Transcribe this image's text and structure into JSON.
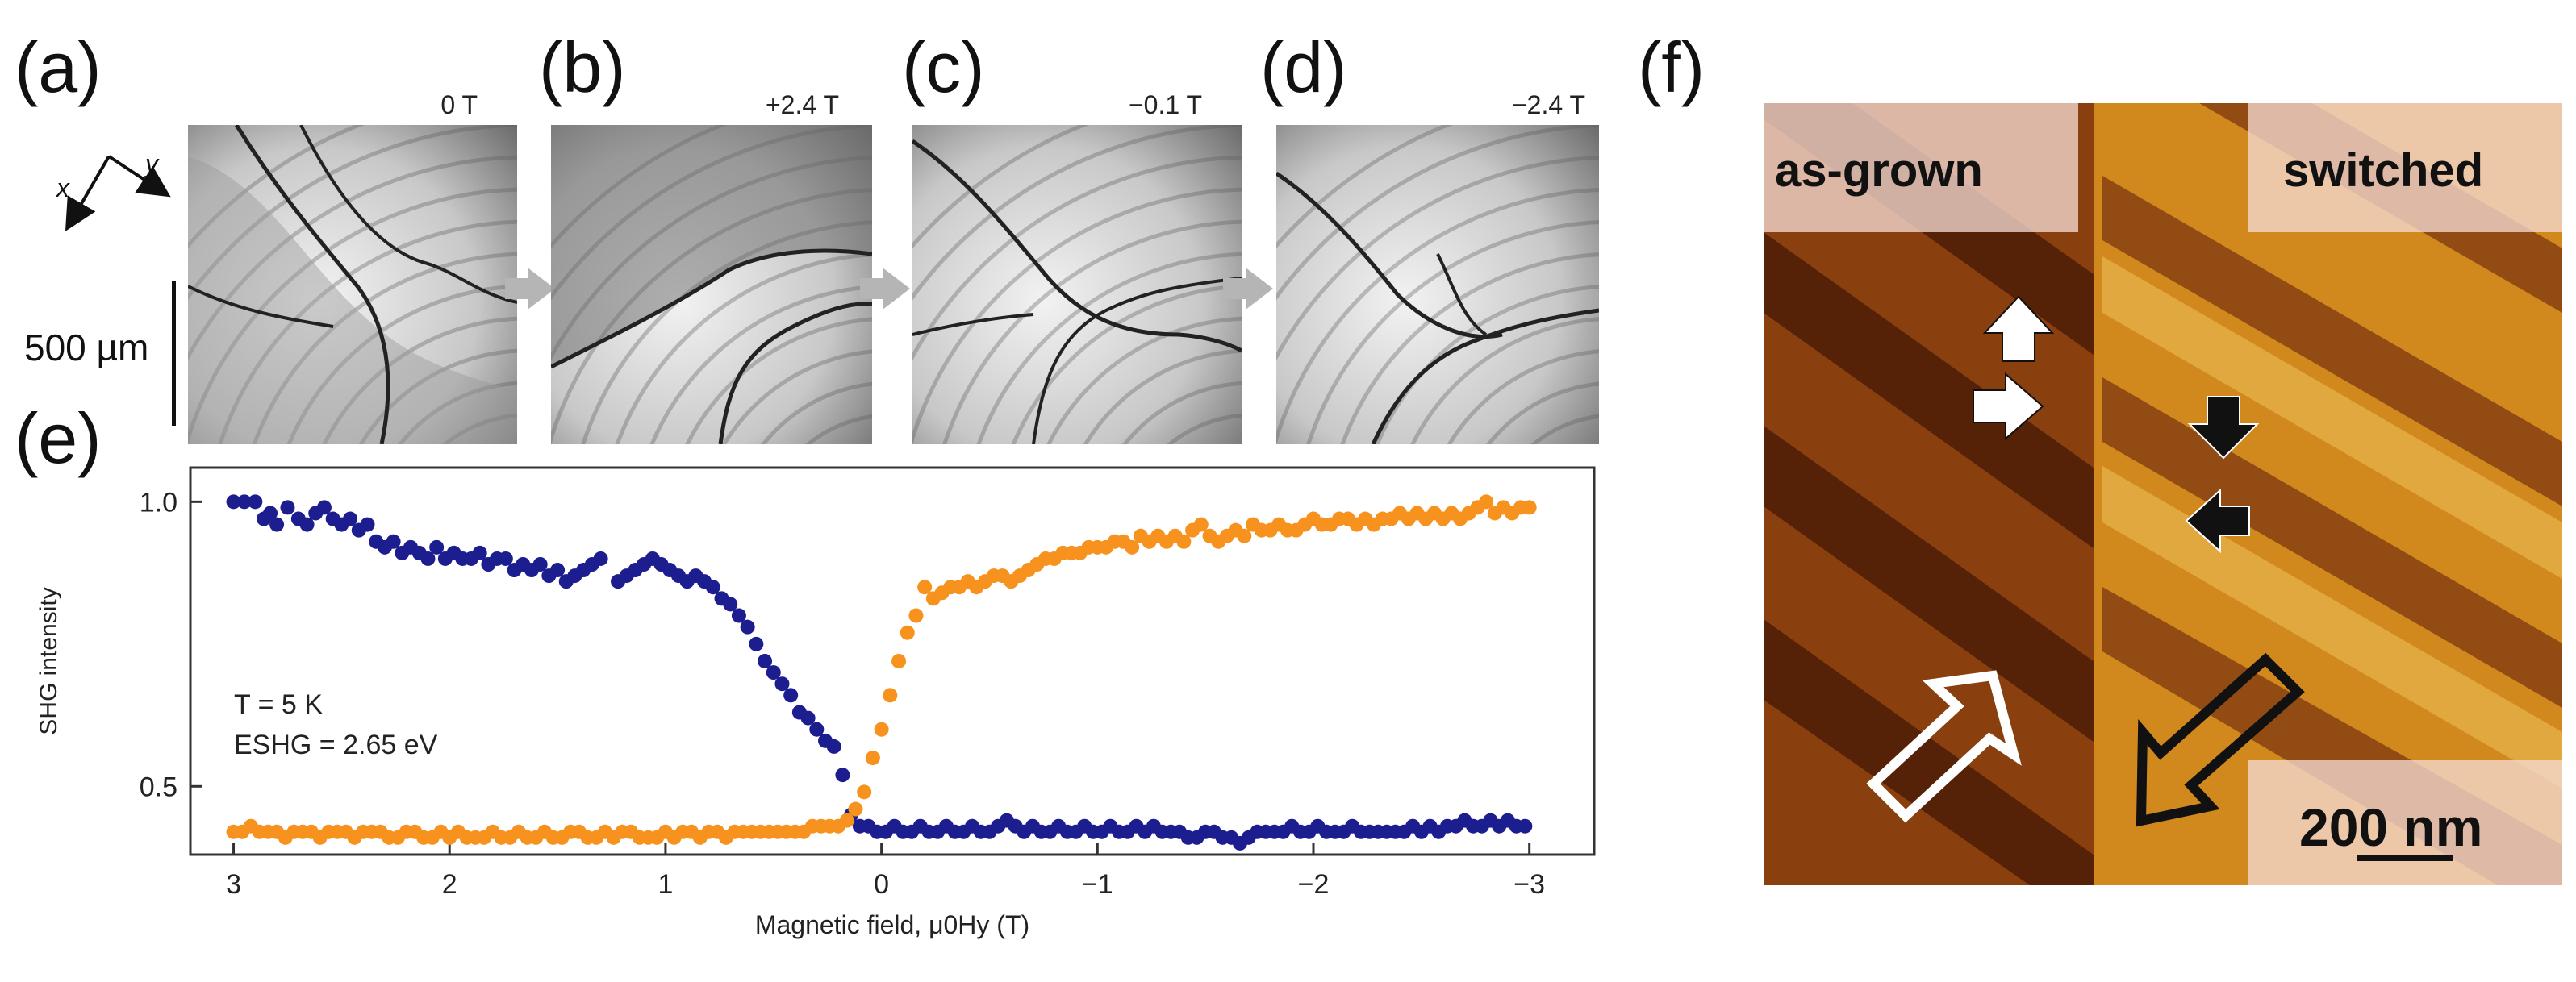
{
  "panels": {
    "a": {
      "label": "(a)",
      "field": "0 T"
    },
    "b": {
      "label": "(b)",
      "field": "+2.4 T"
    },
    "c": {
      "label": "(c)",
      "field": "−0.1 T"
    },
    "d": {
      "label": "(d)",
      "field": "−2.4 T"
    },
    "e": {
      "label": "(e)"
    },
    "f": {
      "label": "(f)"
    }
  },
  "axes_inset": {
    "x": "x",
    "y": "y"
  },
  "scale_500": "500 µm",
  "afm": {
    "left_label": "as-grown",
    "right_label": "switched",
    "scale": "200 nm"
  },
  "colors": {
    "blue": "#1c1d8f",
    "orange": "#f7921e"
  },
  "chart_data": {
    "type": "scatter",
    "title": "",
    "xlabel": "Magnetic field, μ0Hy (T)",
    "ylabel": "SHG intensity",
    "xlim": [
      3.2,
      -3.3
    ],
    "ylim": [
      0.38,
      1.06
    ],
    "xticks": [
      3,
      2,
      1,
      0,
      -1,
      -2,
      -3
    ],
    "xtick_labels": [
      "3",
      "2",
      "1",
      "0",
      "−1",
      "−2",
      "−3"
    ],
    "yticks": [
      0.5,
      1.0
    ],
    "ytick_labels": [
      "0.5",
      "1.0"
    ],
    "annotations": [
      "T = 5 K",
      "ESHG = 2.65 eV"
    ],
    "series": [
      {
        "name": "blue",
        "points": [
          [
            3.0,
            1.0
          ],
          [
            2.95,
            1.0
          ],
          [
            2.9,
            1.0
          ],
          [
            2.86,
            0.97
          ],
          [
            2.83,
            0.98
          ],
          [
            2.8,
            0.96
          ],
          [
            2.75,
            0.99
          ],
          [
            2.7,
            0.97
          ],
          [
            2.66,
            0.96
          ],
          [
            2.62,
            0.98
          ],
          [
            2.58,
            0.99
          ],
          [
            2.54,
            0.97
          ],
          [
            2.5,
            0.96
          ],
          [
            2.46,
            0.97
          ],
          [
            2.42,
            0.95
          ],
          [
            2.38,
            0.96
          ],
          [
            2.34,
            0.93
          ],
          [
            2.3,
            0.92
          ],
          [
            2.26,
            0.93
          ],
          [
            2.22,
            0.91
          ],
          [
            2.18,
            0.92
          ],
          [
            2.14,
            0.91
          ],
          [
            2.1,
            0.9
          ],
          [
            2.06,
            0.92
          ],
          [
            2.02,
            0.9
          ],
          [
            1.98,
            0.91
          ],
          [
            1.94,
            0.9
          ],
          [
            1.9,
            0.9
          ],
          [
            1.86,
            0.91
          ],
          [
            1.82,
            0.89
          ],
          [
            1.78,
            0.9
          ],
          [
            1.74,
            0.9
          ],
          [
            1.7,
            0.88
          ],
          [
            1.66,
            0.89
          ],
          [
            1.62,
            0.88
          ],
          [
            1.58,
            0.89
          ],
          [
            1.54,
            0.87
          ],
          [
            1.5,
            0.88
          ],
          [
            1.46,
            0.86
          ],
          [
            1.42,
            0.87
          ],
          [
            1.38,
            0.88
          ],
          [
            1.34,
            0.89
          ],
          [
            1.3,
            0.9
          ],
          [
            1.22,
            0.86
          ],
          [
            1.18,
            0.87
          ],
          [
            1.14,
            0.88
          ],
          [
            1.1,
            0.89
          ],
          [
            1.06,
            0.9
          ],
          [
            1.02,
            0.89
          ],
          [
            0.98,
            0.88
          ],
          [
            0.94,
            0.87
          ],
          [
            0.9,
            0.86
          ],
          [
            0.86,
            0.87
          ],
          [
            0.82,
            0.86
          ],
          [
            0.78,
            0.85
          ],
          [
            0.74,
            0.83
          ],
          [
            0.7,
            0.82
          ],
          [
            0.66,
            0.8
          ],
          [
            0.62,
            0.78
          ],
          [
            0.58,
            0.75
          ],
          [
            0.54,
            0.72
          ],
          [
            0.5,
            0.7
          ],
          [
            0.46,
            0.68
          ],
          [
            0.42,
            0.66
          ],
          [
            0.38,
            0.63
          ],
          [
            0.34,
            0.62
          ],
          [
            0.3,
            0.6
          ],
          [
            0.26,
            0.58
          ],
          [
            0.22,
            0.57
          ],
          [
            0.18,
            0.52
          ],
          [
            0.14,
            0.45
          ],
          [
            0.1,
            0.43
          ],
          [
            0.06,
            0.43
          ],
          [
            0.02,
            0.42
          ],
          [
            -0.02,
            0.42
          ],
          [
            -0.06,
            0.43
          ],
          [
            -0.1,
            0.42
          ],
          [
            -0.14,
            0.42
          ],
          [
            -0.18,
            0.43
          ],
          [
            -0.22,
            0.42
          ],
          [
            -0.26,
            0.42
          ],
          [
            -0.3,
            0.43
          ],
          [
            -0.34,
            0.42
          ],
          [
            -0.38,
            0.42
          ],
          [
            -0.42,
            0.43
          ],
          [
            -0.46,
            0.42
          ],
          [
            -0.5,
            0.42
          ],
          [
            -0.54,
            0.43
          ],
          [
            -0.58,
            0.44
          ],
          [
            -0.62,
            0.43
          ],
          [
            -0.66,
            0.42
          ],
          [
            -0.7,
            0.43
          ],
          [
            -0.74,
            0.42
          ],
          [
            -0.78,
            0.42
          ],
          [
            -0.82,
            0.43
          ],
          [
            -0.86,
            0.42
          ],
          [
            -0.9,
            0.42
          ],
          [
            -0.94,
            0.43
          ],
          [
            -0.98,
            0.42
          ],
          [
            -1.02,
            0.42
          ],
          [
            -1.06,
            0.43
          ],
          [
            -1.1,
            0.42
          ],
          [
            -1.14,
            0.42
          ],
          [
            -1.18,
            0.43
          ],
          [
            -1.22,
            0.42
          ],
          [
            -1.26,
            0.43
          ],
          [
            -1.3,
            0.42
          ],
          [
            -1.34,
            0.42
          ],
          [
            -1.38,
            0.42
          ],
          [
            -1.42,
            0.41
          ],
          [
            -1.46,
            0.41
          ],
          [
            -1.5,
            0.42
          ],
          [
            -1.54,
            0.42
          ],
          [
            -1.58,
            0.41
          ],
          [
            -1.62,
            0.41
          ],
          [
            -1.66,
            0.4
          ],
          [
            -1.7,
            0.41
          ],
          [
            -1.74,
            0.42
          ],
          [
            -1.78,
            0.42
          ],
          [
            -1.82,
            0.42
          ],
          [
            -1.86,
            0.42
          ],
          [
            -1.9,
            0.43
          ],
          [
            -1.94,
            0.42
          ],
          [
            -1.98,
            0.42
          ],
          [
            -2.02,
            0.43
          ],
          [
            -2.06,
            0.42
          ],
          [
            -2.1,
            0.42
          ],
          [
            -2.14,
            0.42
          ],
          [
            -2.18,
            0.43
          ],
          [
            -2.22,
            0.42
          ],
          [
            -2.26,
            0.42
          ],
          [
            -2.3,
            0.42
          ],
          [
            -2.34,
            0.42
          ],
          [
            -2.38,
            0.42
          ],
          [
            -2.42,
            0.42
          ],
          [
            -2.46,
            0.43
          ],
          [
            -2.5,
            0.42
          ],
          [
            -2.54,
            0.43
          ],
          [
            -2.58,
            0.42
          ],
          [
            -2.62,
            0.43
          ],
          [
            -2.66,
            0.43
          ],
          [
            -2.7,
            0.44
          ],
          [
            -2.74,
            0.43
          ],
          [
            -2.78,
            0.43
          ],
          [
            -2.82,
            0.44
          ],
          [
            -2.86,
            0.43
          ],
          [
            -2.9,
            0.44
          ],
          [
            -2.94,
            0.43
          ],
          [
            -2.98,
            0.43
          ]
        ]
      },
      {
        "name": "orange",
        "points": [
          [
            3.0,
            0.42
          ],
          [
            2.96,
            0.42
          ],
          [
            2.92,
            0.43
          ],
          [
            2.88,
            0.42
          ],
          [
            2.84,
            0.42
          ],
          [
            2.8,
            0.42
          ],
          [
            2.76,
            0.41
          ],
          [
            2.72,
            0.42
          ],
          [
            2.68,
            0.42
          ],
          [
            2.64,
            0.42
          ],
          [
            2.6,
            0.41
          ],
          [
            2.56,
            0.42
          ],
          [
            2.52,
            0.42
          ],
          [
            2.48,
            0.42
          ],
          [
            2.44,
            0.41
          ],
          [
            2.4,
            0.42
          ],
          [
            2.36,
            0.42
          ],
          [
            2.32,
            0.42
          ],
          [
            2.28,
            0.41
          ],
          [
            2.24,
            0.41
          ],
          [
            2.2,
            0.42
          ],
          [
            2.16,
            0.42
          ],
          [
            2.12,
            0.41
          ],
          [
            2.08,
            0.41
          ],
          [
            2.04,
            0.42
          ],
          [
            2.0,
            0.41
          ],
          [
            1.96,
            0.42
          ],
          [
            1.92,
            0.41
          ],
          [
            1.88,
            0.41
          ],
          [
            1.84,
            0.41
          ],
          [
            1.8,
            0.42
          ],
          [
            1.76,
            0.41
          ],
          [
            1.72,
            0.41
          ],
          [
            1.68,
            0.42
          ],
          [
            1.64,
            0.41
          ],
          [
            1.6,
            0.41
          ],
          [
            1.56,
            0.42
          ],
          [
            1.52,
            0.41
          ],
          [
            1.48,
            0.41
          ],
          [
            1.44,
            0.42
          ],
          [
            1.4,
            0.42
          ],
          [
            1.36,
            0.41
          ],
          [
            1.32,
            0.41
          ],
          [
            1.28,
            0.42
          ],
          [
            1.24,
            0.41
          ],
          [
            1.2,
            0.42
          ],
          [
            1.16,
            0.42
          ],
          [
            1.12,
            0.41
          ],
          [
            1.08,
            0.41
          ],
          [
            1.04,
            0.41
          ],
          [
            1.0,
            0.42
          ],
          [
            0.96,
            0.41
          ],
          [
            0.92,
            0.42
          ],
          [
            0.88,
            0.42
          ],
          [
            0.84,
            0.41
          ],
          [
            0.8,
            0.42
          ],
          [
            0.76,
            0.42
          ],
          [
            0.72,
            0.41
          ],
          [
            0.68,
            0.42
          ],
          [
            0.64,
            0.42
          ],
          [
            0.6,
            0.42
          ],
          [
            0.56,
            0.42
          ],
          [
            0.52,
            0.42
          ],
          [
            0.48,
            0.42
          ],
          [
            0.44,
            0.42
          ],
          [
            0.4,
            0.42
          ],
          [
            0.36,
            0.42
          ],
          [
            0.32,
            0.43
          ],
          [
            0.28,
            0.43
          ],
          [
            0.24,
            0.43
          ],
          [
            0.2,
            0.43
          ],
          [
            0.16,
            0.44
          ],
          [
            0.12,
            0.46
          ],
          [
            0.08,
            0.49
          ],
          [
            0.04,
            0.55
          ],
          [
            0.0,
            0.6
          ],
          [
            -0.04,
            0.66
          ],
          [
            -0.08,
            0.72
          ],
          [
            -0.12,
            0.77
          ],
          [
            -0.16,
            0.8
          ],
          [
            -0.2,
            0.85
          ],
          [
            -0.24,
            0.83
          ],
          [
            -0.28,
            0.84
          ],
          [
            -0.32,
            0.85
          ],
          [
            -0.36,
            0.85
          ],
          [
            -0.4,
            0.86
          ],
          [
            -0.44,
            0.85
          ],
          [
            -0.48,
            0.86
          ],
          [
            -0.52,
            0.87
          ],
          [
            -0.56,
            0.87
          ],
          [
            -0.6,
            0.86
          ],
          [
            -0.64,
            0.87
          ],
          [
            -0.68,
            0.88
          ],
          [
            -0.72,
            0.89
          ],
          [
            -0.76,
            0.9
          ],
          [
            -0.8,
            0.9
          ],
          [
            -0.84,
            0.91
          ],
          [
            -0.88,
            0.91
          ],
          [
            -0.92,
            0.91
          ],
          [
            -0.96,
            0.92
          ],
          [
            -1.0,
            0.92
          ],
          [
            -1.04,
            0.92
          ],
          [
            -1.08,
            0.93
          ],
          [
            -1.12,
            0.93
          ],
          [
            -1.16,
            0.92
          ],
          [
            -1.2,
            0.94
          ],
          [
            -1.24,
            0.93
          ],
          [
            -1.28,
            0.94
          ],
          [
            -1.32,
            0.93
          ],
          [
            -1.36,
            0.94
          ],
          [
            -1.4,
            0.93
          ],
          [
            -1.44,
            0.95
          ],
          [
            -1.48,
            0.96
          ],
          [
            -1.52,
            0.94
          ],
          [
            -1.56,
            0.93
          ],
          [
            -1.6,
            0.94
          ],
          [
            -1.64,
            0.95
          ],
          [
            -1.68,
            0.94
          ],
          [
            -1.72,
            0.96
          ],
          [
            -1.76,
            0.95
          ],
          [
            -1.8,
            0.95
          ],
          [
            -1.84,
            0.96
          ],
          [
            -1.88,
            0.95
          ],
          [
            -1.92,
            0.95
          ],
          [
            -1.96,
            0.96
          ],
          [
            -2.0,
            0.97
          ],
          [
            -2.04,
            0.96
          ],
          [
            -2.08,
            0.96
          ],
          [
            -2.12,
            0.97
          ],
          [
            -2.16,
            0.97
          ],
          [
            -2.2,
            0.96
          ],
          [
            -2.24,
            0.97
          ],
          [
            -2.28,
            0.96
          ],
          [
            -2.32,
            0.97
          ],
          [
            -2.36,
            0.97
          ],
          [
            -2.4,
            0.98
          ],
          [
            -2.44,
            0.97
          ],
          [
            -2.48,
            0.98
          ],
          [
            -2.52,
            0.97
          ],
          [
            -2.56,
            0.98
          ],
          [
            -2.6,
            0.97
          ],
          [
            -2.64,
            0.98
          ],
          [
            -2.68,
            0.97
          ],
          [
            -2.72,
            0.98
          ],
          [
            -2.76,
            0.99
          ],
          [
            -2.8,
            1.0
          ],
          [
            -2.84,
            0.98
          ],
          [
            -2.88,
            0.99
          ],
          [
            -2.92,
            0.98
          ],
          [
            -2.96,
            0.99
          ],
          [
            -3.0,
            0.99
          ]
        ]
      }
    ]
  }
}
